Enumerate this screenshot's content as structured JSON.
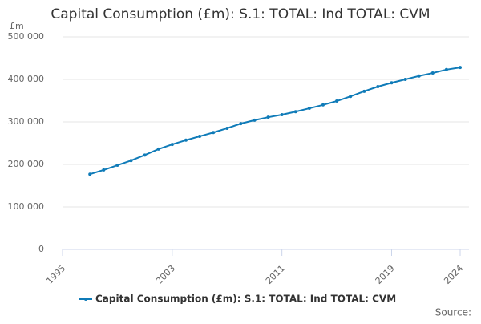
{
  "chart_data": {
    "type": "line",
    "title": "Capital Consumption (£m): S.1: TOTAL: Ind TOTAL: CVM",
    "y_label": "£m",
    "source": "Source:",
    "x": [
      1997,
      1998,
      1999,
      2000,
      2001,
      2002,
      2003,
      2004,
      2005,
      2006,
      2007,
      2008,
      2009,
      2010,
      2011,
      2012,
      2013,
      2014,
      2015,
      2016,
      2017,
      2018,
      2019,
      2020,
      2021,
      2022,
      2023,
      2024
    ],
    "series": [
      {
        "name": "Capital Consumption (£m): S.1: TOTAL: Ind TOTAL: CVM",
        "color": "#0f7bb8",
        "values": [
          177000,
          187000,
          198000,
          209000,
          222000,
          236000,
          247000,
          257000,
          266000,
          275000,
          285000,
          296000,
          304000,
          311000,
          317000,
          324000,
          332000,
          340000,
          349000,
          360000,
          372000,
          383000,
          392000,
          400000,
          408000,
          415000,
          423000,
          428000
        ]
      }
    ],
    "xlim": [
      1995,
      2024
    ],
    "xticks": [
      1995,
      2003,
      2011,
      2019,
      2024
    ],
    "ylim": [
      0,
      500000
    ],
    "yticks": [
      0,
      {
        "value": 100000,
        "label": "100 000"
      },
      {
        "value": 200000,
        "label": "200 000"
      },
      {
        "value": 300000,
        "label": "300 000"
      },
      {
        "value": 400000,
        "label": "400 000"
      },
      {
        "value": 500000,
        "label": "500 000"
      }
    ],
    "grid": true
  }
}
